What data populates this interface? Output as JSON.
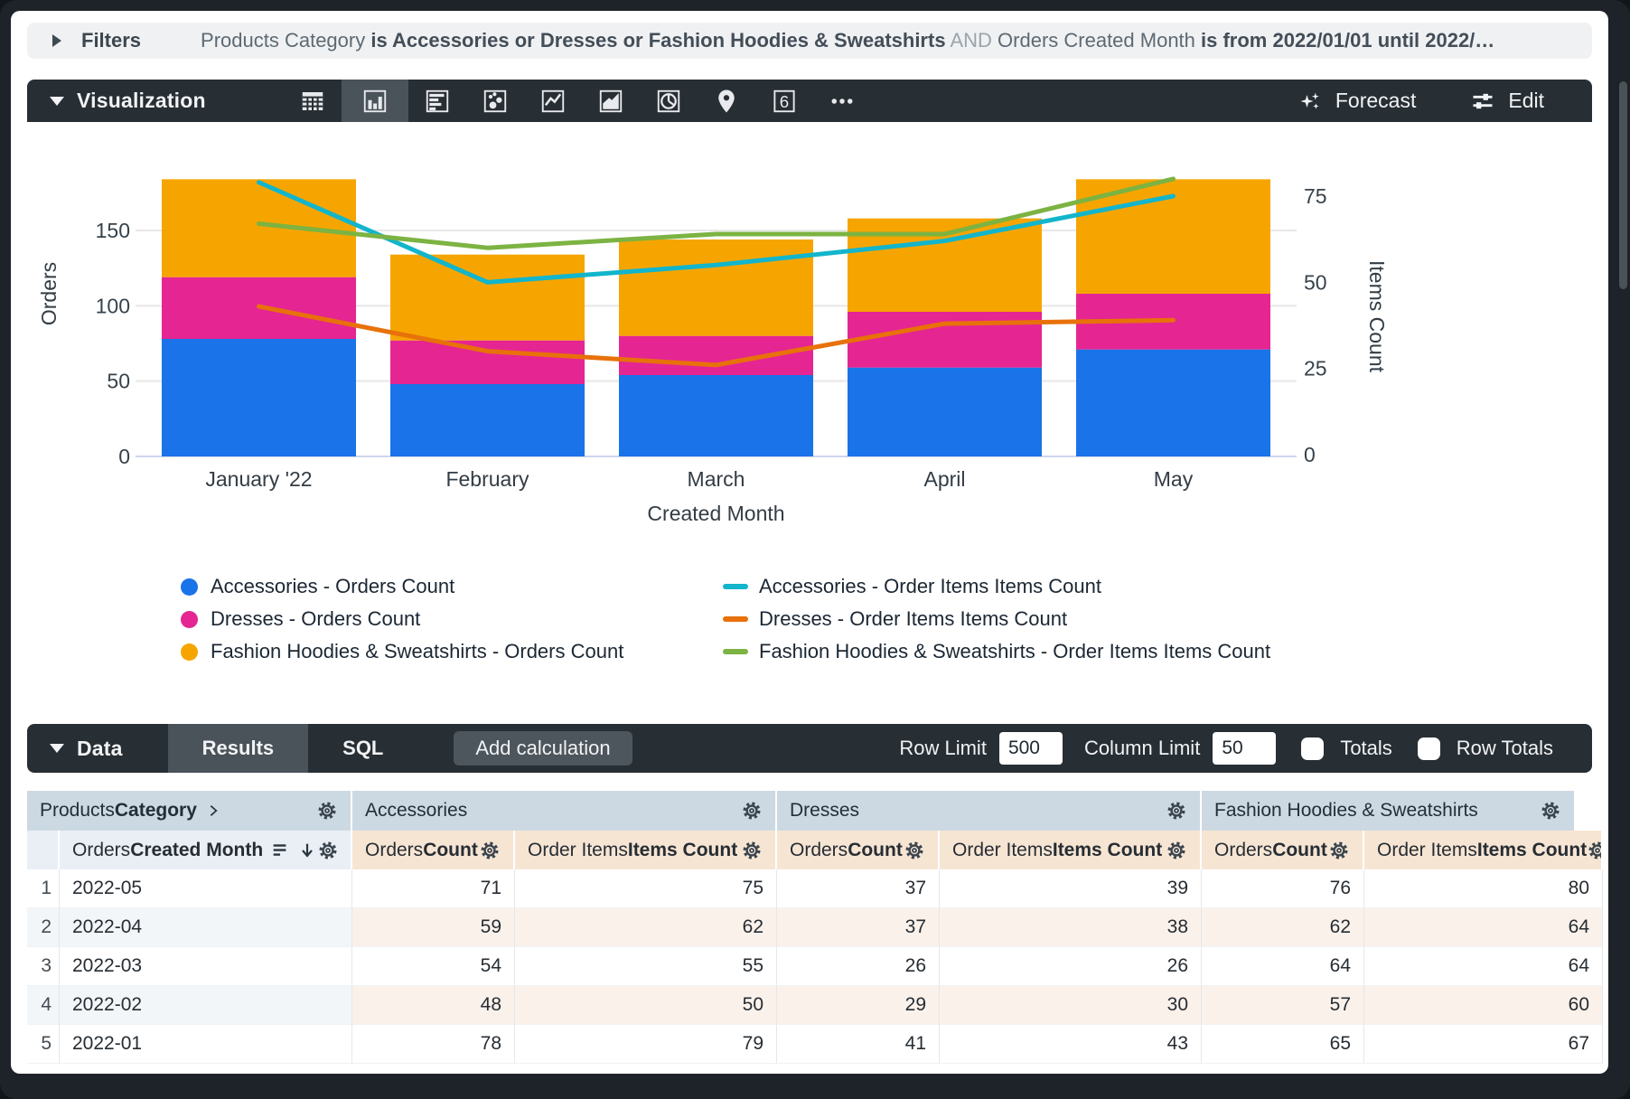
{
  "filters_bar": {
    "label": "Filters",
    "segments": [
      {
        "text": "Products Category ",
        "style": "plain"
      },
      {
        "text": "is Accessories or Dresses or Fashion Hoodies & Sweatshirts",
        "style": "bold"
      },
      {
        "text": " AND ",
        "style": "dim"
      },
      {
        "text": "Orders Created Month ",
        "style": "plain"
      },
      {
        "text": "is from 2022/01/01 until 2022/…",
        "style": "bold"
      }
    ]
  },
  "viz_toolbar": {
    "title": "Visualization",
    "icons": [
      {
        "name": "table-chart",
        "active": false
      },
      {
        "name": "bar-chart",
        "active": true
      },
      {
        "name": "row-chart",
        "active": false
      },
      {
        "name": "scatter-chart",
        "active": false
      },
      {
        "name": "line-chart",
        "active": false
      },
      {
        "name": "area-chart",
        "active": false
      },
      {
        "name": "pie-chart",
        "active": false
      },
      {
        "name": "map-chart",
        "active": false
      },
      {
        "name": "single-value",
        "active": false
      },
      {
        "name": "more-options",
        "active": false
      }
    ],
    "forecast_label": "Forecast",
    "edit_label": "Edit"
  },
  "chart_data": {
    "type": "combo-stacked-bar-line",
    "categories": [
      "January '22",
      "February",
      "March",
      "April",
      "May"
    ],
    "bar_series": [
      {
        "name": "Accessories - Orders Count",
        "color": "#1A73E8",
        "values": [
          78,
          48,
          54,
          59,
          71
        ]
      },
      {
        "name": "Dresses - Orders Count",
        "color": "#E52592",
        "values": [
          41,
          29,
          26,
          37,
          37
        ]
      },
      {
        "name": "Fashion Hoodies & Sweatshirts - Orders Count",
        "color": "#F6A500",
        "values": [
          65,
          57,
          64,
          62,
          76
        ]
      }
    ],
    "line_series": [
      {
        "name": "Accessories - Order Items Items Count",
        "color": "#12B5CB",
        "values": [
          79,
          50,
          55,
          62,
          75
        ]
      },
      {
        "name": "Dresses - Order Items Items Count",
        "color": "#E8710A",
        "values": [
          43,
          30,
          26,
          38,
          39
        ]
      },
      {
        "name": "Fashion Hoodies & Sweatshirts - Order Items Items Count",
        "color": "#7CB342",
        "values": [
          67,
          60,
          64,
          64,
          80
        ]
      }
    ],
    "x_axis_title": "Created Month",
    "left_axis_title": "Orders",
    "right_axis_title": "Items Count",
    "left_ticks": [
      0,
      50,
      100,
      150
    ],
    "right_ticks": [
      0,
      25,
      50,
      75
    ],
    "ylim_left": [
      0,
      205
    ],
    "ylim_right": [
      0,
      88
    ],
    "grid": true,
    "legend_position": "bottom"
  },
  "data_toolbar": {
    "title": "Data",
    "tabs": [
      {
        "label": "Results",
        "active": true
      },
      {
        "label": "SQL",
        "active": false
      }
    ],
    "add_calculation_label": "Add calculation",
    "row_limit_label": "Row Limit",
    "row_limit_value": "500",
    "column_limit_label": "Column Limit",
    "column_limit_value": "50",
    "totals_label": "Totals",
    "row_totals_label": "Row Totals"
  },
  "table": {
    "dimension_group": {
      "pre": "Products ",
      "strong": "Category"
    },
    "dimension_field": {
      "pre": "Orders ",
      "strong": "Created Month"
    },
    "groups": [
      {
        "label": "Accessories"
      },
      {
        "label": "Dresses"
      },
      {
        "label": "Fashion Hoodies & Sweatshirts"
      }
    ],
    "measures": [
      {
        "pre": "Orders ",
        "strong": "Count"
      },
      {
        "pre": "Order Items ",
        "strong": "Items Count"
      }
    ],
    "rows": [
      {
        "n": "1",
        "month": "2022-05",
        "values": [
          "71",
          "75",
          "37",
          "39",
          "76",
          "80"
        ]
      },
      {
        "n": "2",
        "month": "2022-04",
        "values": [
          "59",
          "62",
          "37",
          "38",
          "62",
          "64"
        ]
      },
      {
        "n": "3",
        "month": "2022-03",
        "values": [
          "54",
          "55",
          "26",
          "26",
          "64",
          "64"
        ]
      },
      {
        "n": "4",
        "month": "2022-02",
        "values": [
          "48",
          "50",
          "29",
          "30",
          "57",
          "60"
        ]
      },
      {
        "n": "5",
        "month": "2022-01",
        "values": [
          "78",
          "79",
          "41",
          "43",
          "65",
          "67"
        ]
      }
    ]
  }
}
